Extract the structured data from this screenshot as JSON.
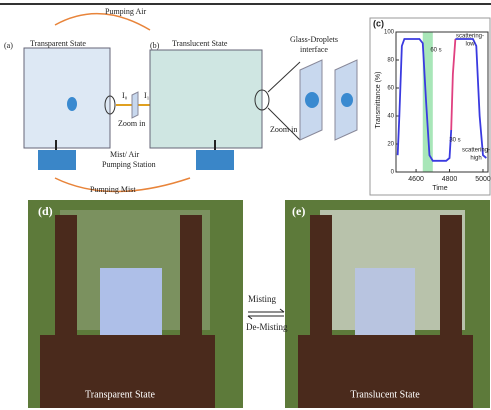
{
  "top": {
    "pumping_air": "Pumping Air",
    "pumping_mist": "Pumping Mist",
    "panel_a": {
      "label": "(a)",
      "state": "Transparent State",
      "zoom": "Zoom in",
      "i0": "I₀",
      "i1": "I₁"
    },
    "panel_b": {
      "label": "(b)",
      "state": "Translucent State",
      "zoom": "Zoom in",
      "interface": [
        "Glass-Droplets",
        "interface"
      ]
    },
    "station": [
      "Mist/ Air",
      "Pumping Station"
    ]
  },
  "chart_data": {
    "type": "line",
    "label": "(c)",
    "ylabel": "Transmittance (%)",
    "xlabel": "Time",
    "xlim": [
      4480,
      5030
    ],
    "ylim": [
      0,
      100
    ],
    "xticks": [
      4600,
      4800,
      5000
    ],
    "yticks": [
      0,
      20,
      40,
      60,
      80,
      100
    ],
    "bands": [
      {
        "x": [
          4640,
          4700
        ],
        "color": "#a8e6b8"
      }
    ],
    "series": [
      {
        "color": "#3a3ae0",
        "x": [
          4490,
          4500,
          4515,
          4530,
          4620,
          4640,
          4660,
          4680,
          4700,
          4780,
          4800,
          4810
        ],
        "values": [
          12,
          40,
          90,
          95,
          95,
          92,
          50,
          12,
          8,
          8,
          10,
          30
        ]
      },
      {
        "color": "#e04080",
        "x": [
          4810,
          4820,
          4835
        ],
        "values": [
          30,
          70,
          95
        ]
      },
      {
        "color": "#3a3ae0",
        "x": [
          4835,
          4940,
          4960,
          4980,
          5000,
          5020
        ],
        "values": [
          95,
          95,
          90,
          40,
          12,
          10
        ]
      }
    ],
    "annotations": [
      "60 s",
      "30 s",
      "scattering-",
      "low",
      "scattering-",
      "high"
    ]
  },
  "photos": {
    "d": {
      "label": "(d)",
      "caption": "Transparent State"
    },
    "e": {
      "label": "(e)",
      "caption": "Translucent State"
    },
    "misting": "Misting",
    "demisting": "De-Misting"
  }
}
